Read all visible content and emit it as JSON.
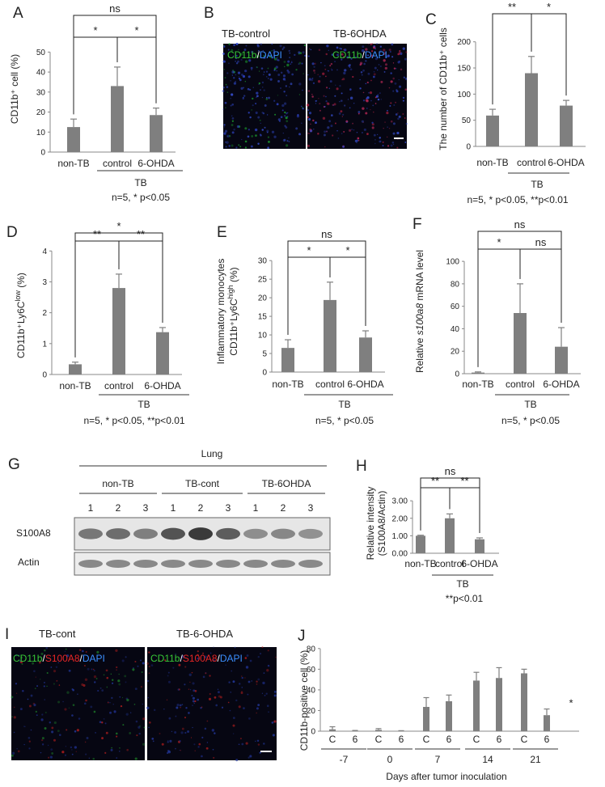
{
  "colors": {
    "bar": "#7f7f7f",
    "axis": "#888888",
    "bracket": "#222222",
    "micro_bg": "#060612"
  },
  "panels": {
    "A": {
      "letter": "A",
      "ylabel": "CD11b⁺ cell (%)",
      "group_label": "TB",
      "note": "n=5, * p<0.05",
      "brackets": [
        {
          "from": 0,
          "to": 2,
          "label": "ns"
        },
        {
          "from": 0,
          "to": 1,
          "label": "*"
        },
        {
          "from": 1,
          "to": 2,
          "label": "*"
        }
      ]
    },
    "B": {
      "letter": "B",
      "image_titles": [
        "TB-control",
        "TB-6OHDA"
      ],
      "stain": [
        {
          "text": "CD11b",
          "color": "#37c837"
        },
        {
          "text": "/",
          "color": "#ffffff"
        },
        {
          "text": "DAPI",
          "color": "#3b8fff"
        }
      ]
    },
    "C": {
      "letter": "C",
      "ylabel": "The number of CD11b⁺ cells",
      "group_label": "TB",
      "note": "n=5, * p<0.05, **p<0.01",
      "brackets": [
        {
          "from": 0,
          "to": 1,
          "label": "**"
        },
        {
          "from": 1,
          "to": 2,
          "label": "*"
        }
      ]
    },
    "D": {
      "letter": "D",
      "ylabel_main": "CD11b⁺Ly6C",
      "ylabel_sup": "low",
      "ylabel_tail": " (%)",
      "group_label": "TB",
      "note": "n=5, * p<0.05, **p<0.01",
      "brackets": [
        {
          "from": 0,
          "to": 2,
          "label": "*"
        },
        {
          "from": 0,
          "to": 1,
          "label": "**"
        },
        {
          "from": 1,
          "to": 2,
          "label": "**"
        }
      ]
    },
    "E": {
      "letter": "E",
      "ylabel_line1": "Inflammatory monocytes",
      "ylabel_main": "CD11b⁺Ly6C",
      "ylabel_sup": "high",
      "ylabel_tail": " (%)",
      "group_label": "TB",
      "note": "n=5, * p<0.05",
      "brackets": [
        {
          "from": 0,
          "to": 2,
          "label": "ns"
        },
        {
          "from": 0,
          "to": 1,
          "label": "*"
        },
        {
          "from": 1,
          "to": 2,
          "label": "*"
        }
      ]
    },
    "F": {
      "letter": "F",
      "ylabel_pre": "Relative ",
      "ylabel_italic": "s100a8",
      "ylabel_post": " mRNA level",
      "group_label": "TB",
      "note": "n=5, * p<0.05",
      "brackets": [
        {
          "from": 0,
          "to": 2,
          "label": "ns"
        },
        {
          "from": 0,
          "to": 1,
          "label": "*"
        },
        {
          "from": 1,
          "to": 2,
          "label": "ns"
        }
      ]
    },
    "G": {
      "letter": "G",
      "tissue": "Lung",
      "groups": [
        "non-TB",
        "TB-cont",
        "TB-6OHDA"
      ],
      "lanes": [
        "1",
        "2",
        "3",
        "1",
        "2",
        "3",
        "1",
        "2",
        "3"
      ],
      "rows": [
        "S100A8",
        "Actin"
      ],
      "s100a8_intensity": [
        0.55,
        0.62,
        0.5,
        0.78,
        0.95,
        0.72,
        0.4,
        0.45,
        0.38
      ]
    },
    "H": {
      "letter": "H",
      "ylabel_line1": "Relative intensity",
      "ylabel_line2": "(S100A8/Actin)",
      "group_label": "TB",
      "note": "**p<0.01",
      "brackets": [
        {
          "from": 0,
          "to": 2,
          "label": "ns"
        },
        {
          "from": 0,
          "to": 1,
          "label": "**"
        },
        {
          "from": 1,
          "to": 2,
          "label": "**"
        }
      ]
    },
    "I": {
      "letter": "I",
      "image_titles": [
        "TB-cont",
        "TB-6-OHDA"
      ],
      "stain": [
        {
          "text": "CD11b",
          "color": "#37c837"
        },
        {
          "text": "/",
          "color": "#ffffff"
        },
        {
          "text": "S100A8",
          "color": "#e82626"
        },
        {
          "text": "/",
          "color": "#ffffff"
        },
        {
          "text": "DAPI",
          "color": "#3b8fff"
        }
      ]
    },
    "J": {
      "letter": "J",
      "sig_label": "*"
    }
  },
  "chart_data": [
    {
      "id": "A",
      "type": "bar",
      "categories": [
        "non-TB",
        "control",
        "6-OHDA"
      ],
      "values": [
        12.5,
        33,
        18.5
      ],
      "errors": [
        4,
        9.5,
        3.5
      ],
      "ylabel": "CD11b⁺ cell (%)",
      "ylim": [
        0,
        55
      ],
      "yticks": [
        0,
        10,
        20,
        30,
        40,
        50
      ],
      "group": "TB"
    },
    {
      "id": "C",
      "type": "bar",
      "categories": [
        "non-TB",
        "control",
        "6-OHDA"
      ],
      "values": [
        59,
        140,
        78
      ],
      "errors": [
        12,
        32,
        10
      ],
      "ylabel": "The number of CD11b⁺ cells",
      "ylim": [
        0,
        215
      ],
      "yticks": [
        0,
        50,
        100,
        150,
        200
      ],
      "group": "TB"
    },
    {
      "id": "D",
      "type": "bar",
      "categories": [
        "non-TB",
        "control",
        "6-OHDA"
      ],
      "values": [
        0.33,
        2.8,
        1.37
      ],
      "errors": [
        0.07,
        0.45,
        0.15
      ],
      "ylabel": "CD11b⁺Ly6Clow (%)",
      "ylim": [
        0,
        4.4
      ],
      "yticks": [
        0,
        1,
        2,
        3,
        4
      ],
      "group": "TB"
    },
    {
      "id": "E",
      "type": "bar",
      "categories": [
        "non-TB",
        "control",
        "6-OHDA"
      ],
      "values": [
        6.5,
        19.4,
        9.3
      ],
      "errors": [
        2.2,
        4.8,
        1.8
      ],
      "ylabel": "Inflammatory monocytes CD11b⁺Ly6Chigh (%)",
      "ylim": [
        0,
        32
      ],
      "yticks": [
        0,
        5,
        10,
        15,
        20,
        25,
        30
      ],
      "group": "TB"
    },
    {
      "id": "F",
      "type": "bar",
      "categories": [
        "non-TB",
        "control",
        "6-OHDA"
      ],
      "values": [
        1,
        54,
        24
      ],
      "errors": [
        0.6,
        26,
        17
      ],
      "ylabel": "Relative s100a8 mRNA level",
      "ylim": [
        0,
        108
      ],
      "yticks": [
        0,
        20,
        40,
        60,
        80,
        100
      ],
      "group": "TB"
    },
    {
      "id": "H",
      "type": "bar",
      "categories": [
        "non-TB",
        "control",
        "6-OHDA"
      ],
      "values": [
        1.0,
        2.0,
        0.8
      ],
      "errors": [
        0.03,
        0.25,
        0.08
      ],
      "ylabel": "Relative intensity (S100A8/Actin)",
      "ylim": [
        0,
        3.1
      ],
      "yticks": [
        "0.00",
        "1.00",
        "2.00",
        "3.00"
      ],
      "group": "TB"
    },
    {
      "id": "J",
      "type": "bar",
      "categories": [
        "C",
        "6",
        "C",
        "6",
        "C",
        "6",
        "C",
        "6",
        "C",
        "6"
      ],
      "groups": [
        "-7",
        "0",
        "7",
        "14",
        "21"
      ],
      "values": [
        1.8,
        0.3,
        1.3,
        0.2,
        23.5,
        29,
        49,
        51.5,
        56,
        15.5
      ],
      "errors": [
        2.5,
        0.4,
        1.2,
        0.3,
        9,
        6,
        8,
        10,
        4,
        6
      ],
      "ylabel": "CD11b-positive cell (%)",
      "xlabel": "Days after tumor inoculation",
      "ylim": [
        0,
        83
      ],
      "yticks": [
        0,
        20,
        40,
        60,
        80
      ]
    }
  ]
}
